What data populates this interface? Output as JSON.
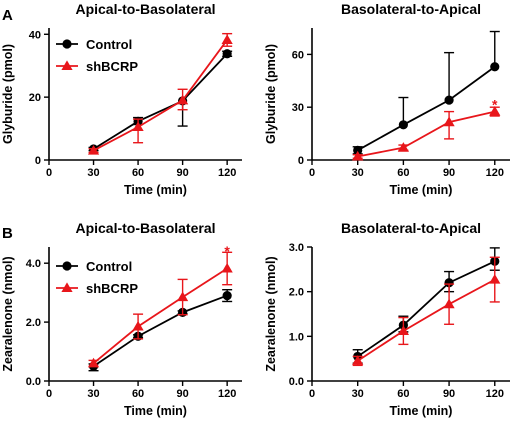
{
  "colors": {
    "control": "#000000",
    "shBCRP": "#e8161b"
  },
  "chart_data": [
    {
      "panel_letter": "A",
      "type": "line",
      "title": "Apical-to-Basolateral",
      "xlabel": "Time (min)",
      "ylabel": "Glyburide (pmol)",
      "xlim": [
        0,
        130
      ],
      "ylim": [
        0,
        42
      ],
      "xticks": [
        0,
        30,
        60,
        90,
        120
      ],
      "yticks": [
        0,
        20,
        40
      ],
      "ytick_labels": [
        "0",
        "20",
        "40"
      ],
      "legend": "top-left",
      "annotation": {
        "text": "",
        "x": 120,
        "y": 0
      },
      "x": [
        30,
        60,
        90,
        120
      ],
      "series": [
        {
          "name": "Control",
          "marker": "circle",
          "color": "#000000",
          "values": [
            3.5,
            12.3,
            18.8,
            33.8
          ],
          "err_up": [
            0.5,
            1.2,
            0,
            0.8
          ],
          "err_down": [
            0.5,
            1.0,
            8.0,
            0.8
          ]
        },
        {
          "name": "shBCRP",
          "marker": "triangle",
          "color": "#e8161b",
          "values": [
            3.0,
            10.5,
            19.0,
            38.2
          ],
          "err_up": [
            0.6,
            2.5,
            3.5,
            2.0
          ],
          "err_down": [
            0.6,
            5.0,
            3.0,
            2.0
          ]
        }
      ]
    },
    {
      "panel_letter": "",
      "type": "line",
      "title": "Basolateral-to-Apical",
      "xlabel": "Time (min)",
      "ylabel": "Glyburide (pmol)",
      "xlim": [
        0,
        130
      ],
      "ylim": [
        0,
        75
      ],
      "xticks": [
        0,
        30,
        60,
        90,
        120
      ],
      "yticks": [
        0,
        30,
        60
      ],
      "ytick_labels": [
        "0",
        "30",
        "60"
      ],
      "legend": "",
      "annotation": {
        "text": "*",
        "x": 120,
        "y": 32
      },
      "x": [
        30,
        60,
        90,
        120
      ],
      "series": [
        {
          "name": "Control",
          "marker": "circle",
          "color": "#000000",
          "values": [
            5.5,
            20.0,
            34.0,
            53.0
          ],
          "err_up": [
            2.0,
            15.5,
            27.0,
            20.0
          ],
          "err_down": [
            2.0,
            0,
            0,
            0
          ]
        },
        {
          "name": "shBCRP",
          "marker": "triangle",
          "color": "#e8161b",
          "values": [
            2.0,
            7.0,
            21.5,
            27.5
          ],
          "err_up": [
            1.0,
            1.5,
            6.0,
            2.5
          ],
          "err_down": [
            1.0,
            1.5,
            9.5,
            2.5
          ]
        }
      ]
    },
    {
      "panel_letter": "B",
      "type": "line",
      "title": "Apical-to-Basolateral",
      "xlabel": "Time (min)",
      "ylabel": "Zearalenone (nmol)",
      "xlim": [
        0,
        130
      ],
      "ylim": [
        0,
        4.55
      ],
      "xticks": [
        0,
        30,
        60,
        90,
        120
      ],
      "yticks": [
        0,
        2,
        4
      ],
      "ytick_labels": [
        "0.0",
        "2.0",
        "4.0"
      ],
      "legend": "top-left",
      "annotation": {
        "text": "*",
        "x": 120,
        "y": 4.45
      },
      "x": [
        30,
        60,
        90,
        120
      ],
      "series": [
        {
          "name": "Control",
          "marker": "circle",
          "color": "#000000",
          "values": [
            0.5,
            1.52,
            2.33,
            2.9
          ],
          "err_up": [
            0.08,
            0.05,
            0.05,
            0.2
          ],
          "err_down": [
            0.15,
            0.05,
            0.05,
            0.2
          ]
        },
        {
          "name": "shBCRP",
          "marker": "triangle",
          "color": "#e8161b",
          "values": [
            0.6,
            1.85,
            2.85,
            3.82
          ],
          "err_up": [
            0.1,
            0.42,
            0.6,
            0.55
          ],
          "err_down": [
            0.1,
            0.42,
            0.6,
            0.55
          ]
        }
      ]
    },
    {
      "panel_letter": "",
      "type": "line",
      "title": "Basolateral-to-Apical",
      "xlabel": "Time (min)",
      "ylabel": "Zearalenone (nmol)",
      "xlim": [
        0,
        130
      ],
      "ylim": [
        0,
        3.0
      ],
      "xticks": [
        0,
        30,
        60,
        90,
        120
      ],
      "yticks": [
        0,
        1,
        2,
        3
      ],
      "ytick_labels": [
        "0.0",
        "1.0",
        "2.0",
        "3.0"
      ],
      "legend": "",
      "annotation": {
        "text": "",
        "x": 120,
        "y": 0
      },
      "x": [
        30,
        60,
        90,
        120
      ],
      "series": [
        {
          "name": "Control",
          "marker": "circle",
          "color": "#000000",
          "values": [
            0.55,
            1.25,
            2.2,
            2.68
          ],
          "err_up": [
            0.15,
            0.2,
            0.25,
            0.3
          ],
          "err_down": [
            0.15,
            0.15,
            0.2,
            0.2
          ]
        },
        {
          "name": "shBCRP",
          "marker": "triangle",
          "color": "#e8161b",
          "values": [
            0.45,
            1.12,
            1.72,
            2.27
          ],
          "err_up": [
            0.1,
            0.3,
            0.45,
            0.5
          ],
          "err_down": [
            0.1,
            0.3,
            0.45,
            0.5
          ]
        }
      ]
    }
  ]
}
